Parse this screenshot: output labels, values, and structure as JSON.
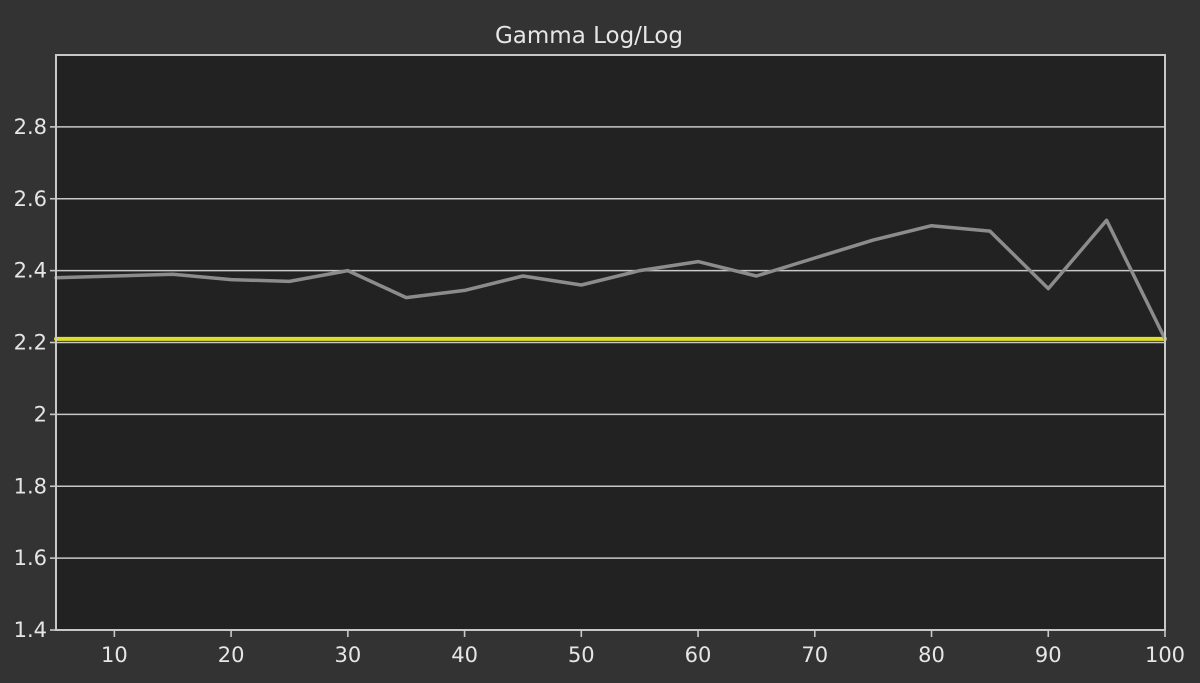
{
  "chart_data": {
    "type": "line",
    "title": "Gamma Log/Log",
    "xlabel": "",
    "ylabel": "",
    "xlim": [
      5,
      100
    ],
    "ylim": [
      1.4,
      3.0
    ],
    "x_ticks": [
      10,
      20,
      30,
      40,
      50,
      60,
      70,
      80,
      90,
      100
    ],
    "y_ticks": [
      "1.4",
      "1.6",
      "1.8",
      "2",
      "2.2",
      "2.4",
      "2.6",
      "2.8"
    ],
    "y_tick_values": [
      1.4,
      1.6,
      1.8,
      2.0,
      2.2,
      2.4,
      2.6,
      2.8
    ],
    "grid": true,
    "series": [
      {
        "x": [
          5,
          10,
          15,
          20,
          25,
          30,
          35,
          40,
          45,
          50,
          55,
          60,
          65,
          70,
          75,
          80,
          85,
          90,
          95,
          100
        ],
        "values": [
          2.38,
          2.385,
          2.39,
          2.375,
          2.37,
          2.4,
          2.325,
          2.345,
          2.385,
          2.36,
          2.4,
          2.425,
          2.385,
          2.435,
          2.485,
          2.525,
          2.51,
          2.35,
          2.54,
          2.21
        ],
        "color": "#8c8c8c"
      },
      {
        "x": [
          5,
          100
        ],
        "values": [
          2.21,
          2.21
        ],
        "color": "#e0de2a"
      }
    ]
  },
  "colors": {
    "background": "#333333",
    "plot_area": "#222222",
    "grid": "#c8c8c8",
    "frame": "#c8c8c8",
    "text": "#e6e6e6"
  }
}
